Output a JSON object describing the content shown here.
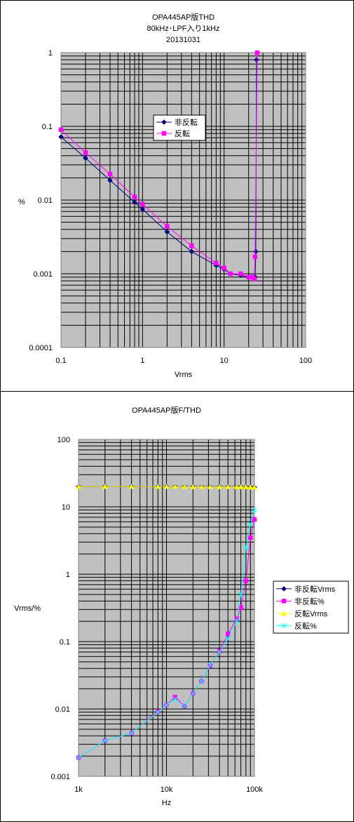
{
  "chart_data": [
    {
      "type": "line",
      "title": [
        "OPA445AP版THD",
        "80kHz･LPF入り1kHz",
        "20131031"
      ],
      "xlabel": "Vrms",
      "ylabel": "%",
      "xscale": "log",
      "yscale": "log",
      "xlim": [
        0.1,
        100
      ],
      "ylim": [
        0.0001,
        1
      ],
      "xticks": [
        "0.1",
        "1",
        "10",
        "100"
      ],
      "yticks": [
        "1",
        "0.1",
        "0.01",
        "0.001",
        "0.0001"
      ],
      "grid": true,
      "legend_position": "upper-middle",
      "series": [
        {
          "name": "非反転",
          "color": "#000080",
          "marker": "diamond",
          "x": [
            0.1,
            0.2,
            0.4,
            0.8,
            1.0,
            2.0,
            4.0,
            8.0,
            10.0,
            12.0,
            16.0,
            20.0,
            22.0,
            24.0,
            24.5,
            25.0
          ],
          "y": [
            0.072,
            0.037,
            0.0185,
            0.0093,
            0.0075,
            0.0037,
            0.002,
            0.0013,
            0.00115,
            0.001,
            0.00095,
            0.0009,
            0.0009,
            0.0009,
            0.002,
            0.8
          ]
        },
        {
          "name": "反転",
          "color": "#FF00FF",
          "marker": "square",
          "x": [
            0.1,
            0.2,
            0.4,
            0.8,
            1.0,
            2.0,
            4.0,
            8.0,
            10.0,
            12.0,
            16.0,
            20.0,
            22.0,
            23.5,
            24.0,
            25.5
          ],
          "y": [
            0.09,
            0.044,
            0.0225,
            0.011,
            0.0088,
            0.0044,
            0.0024,
            0.0014,
            0.0012,
            0.001,
            0.001,
            0.0009,
            0.0009,
            0.00085,
            0.0017,
            1.0
          ]
        }
      ]
    },
    {
      "type": "line",
      "title": [
        "OPA445AP版F/THD"
      ],
      "xlabel": "Hz",
      "ylabel": "Vrms/%",
      "xscale": "log",
      "yscale": "log",
      "xlim": [
        1000,
        100000
      ],
      "ylim": [
        0.001,
        100
      ],
      "xticks": [
        "1k",
        "10k",
        "100k"
      ],
      "yticks": [
        "100",
        "10",
        "1",
        "0.1",
        "0.01",
        "0.001"
      ],
      "grid": true,
      "legend_position": "right",
      "series": [
        {
          "name": "非反転Vrms",
          "color": "#000080",
          "marker": "diamond",
          "x": [
            1000,
            2000,
            4000,
            8000,
            10000,
            12500,
            16000,
            20000,
            25000,
            31500,
            40000,
            50000,
            63000,
            70000,
            80000,
            90000,
            100000
          ],
          "y": [
            20,
            20,
            20,
            20,
            20,
            20,
            19.8,
            19.8,
            19.8,
            19.8,
            19.8,
            19.8,
            19.8,
            19.8,
            19.8,
            19.5,
            19.5
          ]
        },
        {
          "name": "非反転%",
          "color": "#FF00FF",
          "marker": "square",
          "x": [
            1000,
            2000,
            4000,
            8000,
            10000,
            12500,
            16000,
            20000,
            25000,
            31500,
            40000,
            50000,
            63000,
            70000,
            80000,
            90000,
            100000
          ],
          "y": [
            0.0019,
            0.0034,
            0.0044,
            0.0092,
            0.0115,
            0.015,
            0.011,
            0.017,
            0.026,
            0.044,
            0.072,
            0.13,
            0.22,
            0.32,
            0.8,
            3.5,
            6.5
          ]
        },
        {
          "name": "反転Vrms",
          "color": "#FFFF00",
          "marker": "triangle",
          "x": [
            1000,
            2000,
            4000,
            8000,
            10000,
            12500,
            16000,
            20000,
            25000,
            31500,
            40000,
            50000,
            63000,
            70000,
            80000,
            90000,
            100000
          ],
          "y": [
            20,
            20,
            20,
            20,
            20,
            20,
            19.8,
            19.8,
            19.8,
            19.8,
            19.8,
            19.8,
            19.8,
            19.8,
            19.8,
            19.5,
            19.5
          ]
        },
        {
          "name": "反転%",
          "color": "#00FFFF",
          "marker": "x",
          "x": [
            1000,
            2000,
            4000,
            8000,
            10000,
            12500,
            16000,
            20000,
            25000,
            31500,
            40000,
            50000,
            63000,
            70000,
            80000,
            90000,
            100000
          ],
          "y": [
            0.0019,
            0.0034,
            0.0044,
            0.009,
            0.0115,
            0.014,
            0.011,
            0.017,
            0.026,
            0.045,
            0.07,
            0.11,
            0.2,
            0.5,
            2.5,
            5.5,
            9
          ]
        }
      ]
    }
  ]
}
